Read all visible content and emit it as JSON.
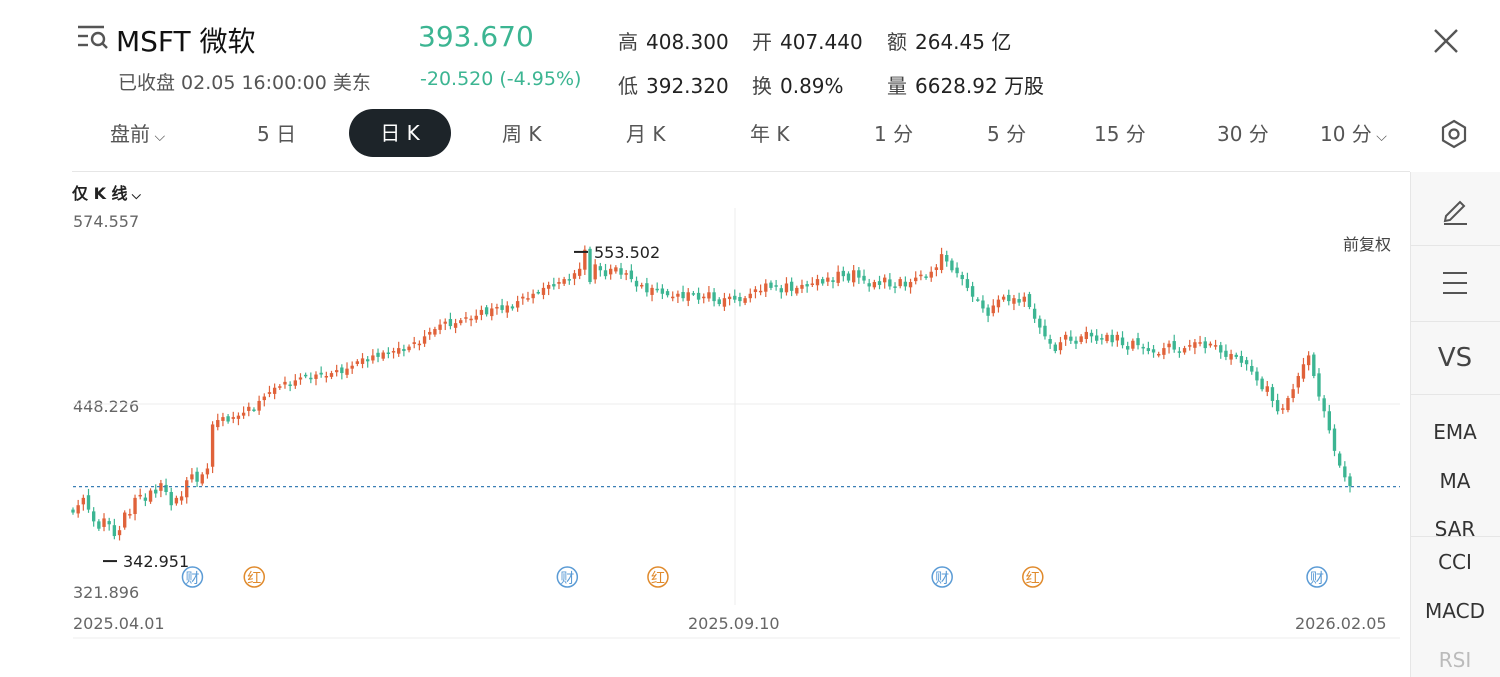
{
  "header": {
    "symbol_name": "MSFT 微软",
    "status": "已收盘 02.05 16:00:00 美东",
    "price": "393.670",
    "change": "-20.520 (-4.95%)",
    "stats": [
      {
        "label": "高",
        "value": "408.300"
      },
      {
        "label": "开",
        "value": "407.440"
      },
      {
        "label": "额",
        "value": "264.45 亿"
      },
      {
        "label": "低",
        "value": "392.320"
      },
      {
        "label": "换",
        "value": "0.89%"
      },
      {
        "label": "量",
        "value": "6628.92 万股"
      }
    ]
  },
  "tabs": [
    {
      "label": "盘前",
      "dropdown": true
    },
    {
      "label": "5 日"
    },
    {
      "label": "日 K",
      "active": true
    },
    {
      "label": "周 K"
    },
    {
      "label": "月 K"
    },
    {
      "label": "年 K"
    },
    {
      "label": "1 分"
    },
    {
      "label": "5 分"
    },
    {
      "label": "15 分"
    },
    {
      "label": "30 分"
    },
    {
      "label": "10 分",
      "dropdown": true
    }
  ],
  "chart_options": {
    "mode": "仅 K 线",
    "adjust": "前复权"
  },
  "sidebar": {
    "items": [
      {
        "icon": "pencil-icon"
      },
      {
        "icon": "menu-lines-icon"
      },
      {
        "label": "VS"
      },
      {
        "label": "EMA"
      },
      {
        "label": "MA"
      },
      {
        "label": "SAR"
      },
      {
        "label": "CCI"
      },
      {
        "label": "MACD"
      },
      {
        "label": "RSI"
      }
    ]
  },
  "colors": {
    "up": "#e0623a",
    "down": "#3cb592",
    "tab_active_bg": "#1d2429",
    "marker_cai": "#5b9bd5",
    "marker_hong": "#e08a2c",
    "last_price_line": "#3a7fb5"
  },
  "chart_data": {
    "type": "candlestick",
    "y_axis_labels": [
      "574.557",
      "448.226",
      "321.896"
    ],
    "x_axis_labels": [
      "2025.04.01",
      "2025.09.10",
      "2026.02.05"
    ],
    "ylim": [
      321.896,
      574.557
    ],
    "high_marker": "553.502",
    "low_marker": "342.951",
    "last_close": 393.67,
    "event_markers": [
      {
        "label": "财",
        "date": "2025.04.30"
      },
      {
        "label": "红",
        "date": "2025.05.15"
      },
      {
        "label": "财",
        "date": "2025.07.30"
      },
      {
        "label": "红",
        "date": "2025.08.21"
      },
      {
        "label": "财",
        "date": "2025.10.29"
      },
      {
        "label": "红",
        "date": "2025.11.20"
      },
      {
        "label": "财",
        "date": "2026.01.28"
      }
    ],
    "closes": [
      376,
      381,
      386,
      378,
      370,
      365,
      372,
      368,
      360,
      364,
      376,
      375,
      386,
      388,
      384,
      391,
      389,
      396,
      390,
      381,
      386,
      387,
      398,
      402,
      397,
      402,
      406,
      436,
      439,
      441,
      438,
      441,
      442,
      444,
      448,
      446,
      452,
      455,
      458,
      461,
      462,
      465,
      463,
      466,
      468,
      469,
      467,
      470,
      470,
      469,
      471,
      473,
      471,
      474,
      476,
      479,
      481,
      479,
      483,
      482,
      485,
      484,
      486,
      488,
      486,
      489,
      492,
      491,
      496,
      499,
      501,
      504,
      506,
      503,
      505,
      507,
      509,
      508,
      510,
      514,
      511,
      515,
      516,
      514,
      517,
      515,
      520,
      523,
      522,
      525,
      526,
      529,
      531,
      530,
      533,
      535,
      534,
      539,
      542,
      555,
      533,
      545,
      541,
      537,
      542,
      543,
      538,
      539,
      535,
      530,
      531,
      526,
      529,
      528,
      525,
      524,
      523,
      525,
      522,
      526,
      525,
      521,
      523,
      526,
      520,
      518,
      522,
      523,
      521,
      520,
      522,
      525,
      528,
      527,
      532,
      529,
      530,
      526,
      532,
      527,
      529,
      531,
      530,
      532,
      535,
      532,
      536,
      533,
      540,
      537,
      534,
      541,
      536,
      534,
      530,
      533,
      531,
      536,
      530,
      529,
      535,
      530,
      533,
      536,
      538,
      536,
      540,
      543,
      552,
      547,
      541,
      539,
      535,
      529,
      523,
      521,
      515,
      510,
      517,
      521,
      523,
      520,
      522,
      519,
      523,
      516,
      508,
      502,
      496,
      491,
      486,
      492,
      497,
      493,
      491,
      496,
      499,
      496,
      493,
      494,
      497,
      492,
      497,
      490,
      487,
      493,
      490,
      488,
      486,
      485,
      484,
      488,
      491,
      487,
      485,
      488,
      490,
      492,
      492,
      488,
      491,
      490,
      485,
      482,
      484,
      482,
      478,
      477,
      472,
      466,
      460,
      462,
      452,
      445,
      447,
      454,
      460,
      469,
      477,
      483,
      469,
      455,
      445,
      432,
      418,
      408,
      400,
      394
    ],
    "markers_note": ""
  }
}
